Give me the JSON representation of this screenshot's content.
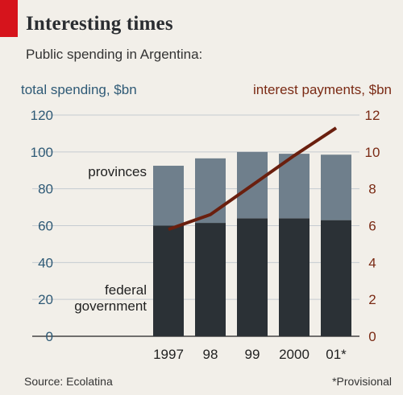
{
  "header": {
    "title": "Interesting times",
    "subtitle": "Public spending in Argentina:"
  },
  "footer": {
    "source": "Source: Ecolatina",
    "note": "*Provisional"
  },
  "colors": {
    "background": "#f2efe9",
    "grid": "#c5cbd1",
    "federal": "#2b3136",
    "provinces": "#6f7f8c",
    "interest_line": "#6a1f0e",
    "left_axis": "#2f5a76",
    "right_axis": "#7a2a14",
    "accent": "#d6141c"
  },
  "chart_data": {
    "type": "bar",
    "stacked": true,
    "categories": [
      "1997",
      "98",
      "99",
      "2000",
      "01*"
    ],
    "series": [
      {
        "name": "federal government",
        "values": [
          60,
          61.5,
          64,
          64,
          63
        ]
      },
      {
        "name": "provinces",
        "values": [
          32.5,
          35,
          36,
          35,
          35.5
        ]
      }
    ],
    "line_series": {
      "axis": "right",
      "values": [
        5.8,
        6.6,
        8.2,
        9.8,
        11.3
      ]
    },
    "ylabel": "total spending, $bn",
    "ylim": [
      0,
      120
    ],
    "yticks": [
      0,
      20,
      40,
      60,
      80,
      100,
      120
    ],
    "y2label": "interest payments, $bn",
    "y2lim": [
      0,
      12
    ],
    "y2ticks": [
      0,
      2,
      4,
      6,
      8,
      10,
      12
    ],
    "grid": true,
    "legend": "inline labels"
  }
}
